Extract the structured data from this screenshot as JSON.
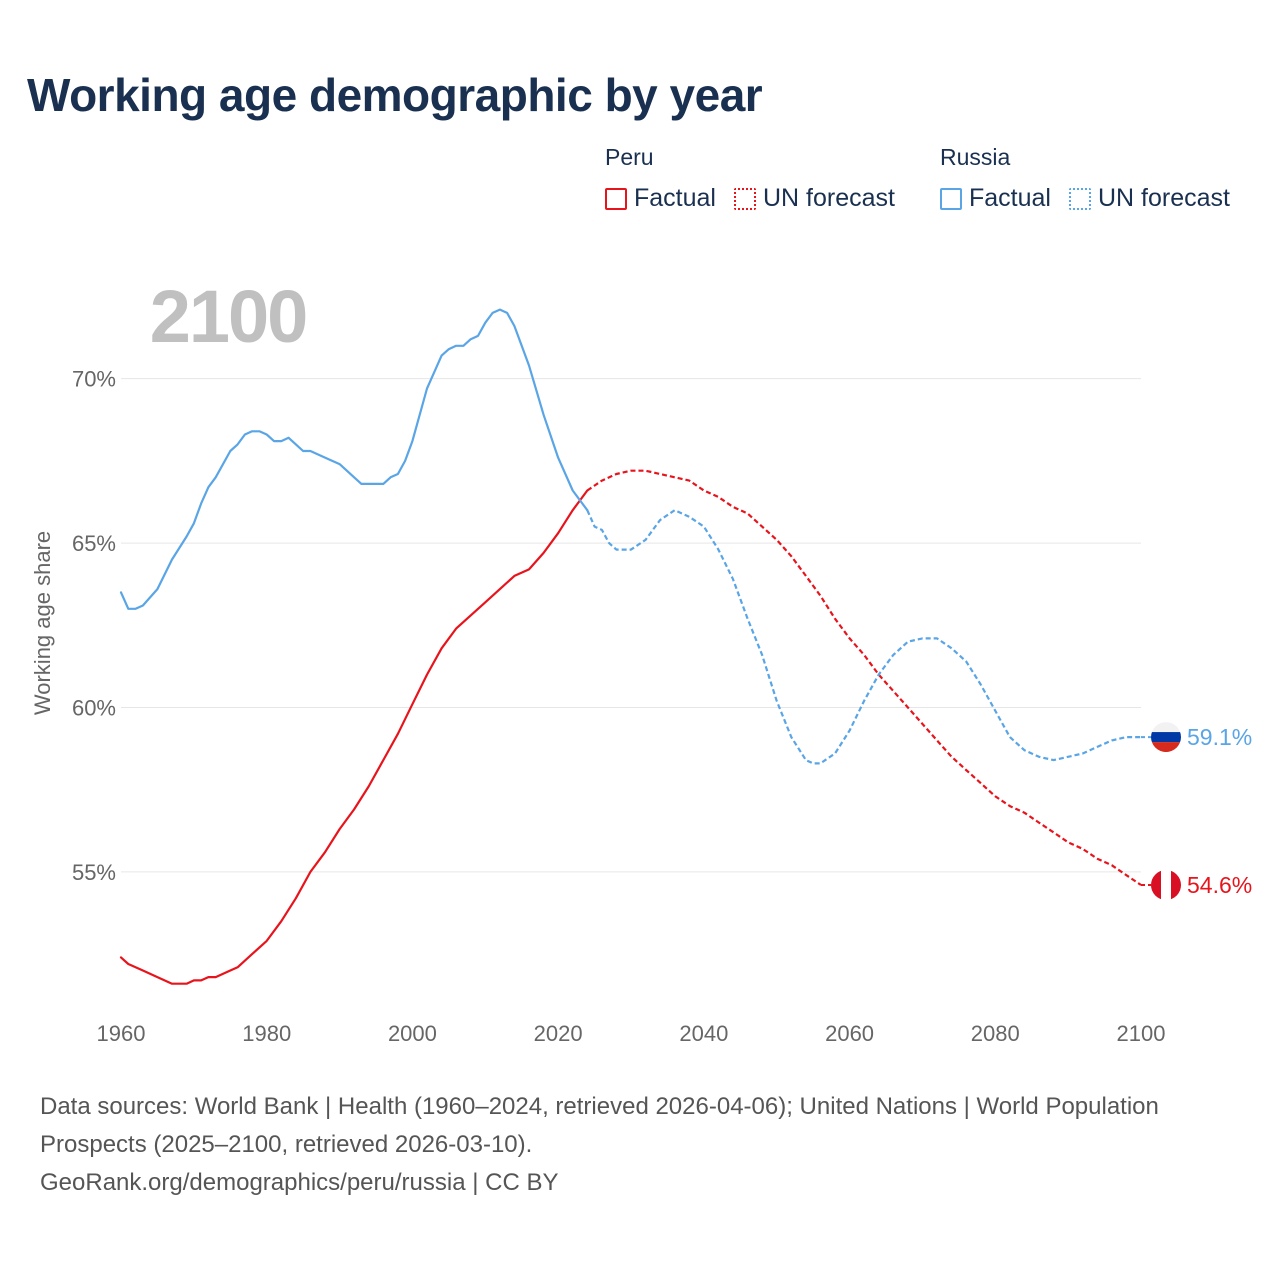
{
  "title": "Working age demographic by year",
  "legend": {
    "groups": [
      {
        "country": "Peru",
        "factual_label": "Factual",
        "forecast_label": "UN forecast",
        "color": "#e8141c"
      },
      {
        "country": "Russia",
        "factual_label": "Factual",
        "forecast_label": "UN forecast",
        "color": "#5aa5e6"
      }
    ]
  },
  "colors": {
    "title": "#1a3050",
    "axis_text": "#666666",
    "grid": "#e6e6e6",
    "year_watermark": "#c0c0c0",
    "peru_flag_red": "#d91023",
    "russia_flag_white": "#f2f2f2",
    "russia_flag_blue": "#0039a6",
    "russia_flag_red": "#d52b1e"
  },
  "chart_data": {
    "type": "line",
    "title": "Working age demographic by year",
    "year_watermark": "2100",
    "xlabel": "",
    "ylabel": "Working age share",
    "xlim": [
      1960,
      2100
    ],
    "ylim": [
      50.8,
      73
    ],
    "x_ticks": [
      1960,
      1980,
      2000,
      2020,
      2040,
      2060,
      2080,
      2100
    ],
    "x_tick_labels": [
      "1960",
      "1980",
      "2000",
      "2020",
      "2040",
      "2060",
      "2080",
      "2100"
    ],
    "y_ticks": [
      55,
      60,
      65,
      70
    ],
    "y_tick_labels": [
      "55%",
      "60%",
      "65%",
      "70%"
    ],
    "grid": true,
    "factual_end_year": 2024,
    "series": [
      {
        "name": "Peru",
        "end_label": "54.6%",
        "points": [
          [
            1960,
            52.4
          ],
          [
            1961,
            52.2
          ],
          [
            1963,
            52.0
          ],
          [
            1965,
            51.8
          ],
          [
            1967,
            51.6
          ],
          [
            1969,
            51.6
          ],
          [
            1970,
            51.7
          ],
          [
            1971,
            51.7
          ],
          [
            1972,
            51.8
          ],
          [
            1973,
            51.8
          ],
          [
            1975,
            52.0
          ],
          [
            1976,
            52.1
          ],
          [
            1978,
            52.5
          ],
          [
            1980,
            52.9
          ],
          [
            1982,
            53.5
          ],
          [
            1984,
            54.2
          ],
          [
            1986,
            55.0
          ],
          [
            1988,
            55.6
          ],
          [
            1990,
            56.3
          ],
          [
            1992,
            56.9
          ],
          [
            1994,
            57.6
          ],
          [
            1996,
            58.4
          ],
          [
            1998,
            59.2
          ],
          [
            2000,
            60.1
          ],
          [
            2002,
            61.0
          ],
          [
            2004,
            61.8
          ],
          [
            2006,
            62.4
          ],
          [
            2008,
            62.8
          ],
          [
            2010,
            63.2
          ],
          [
            2012,
            63.6
          ],
          [
            2014,
            64.0
          ],
          [
            2016,
            64.2
          ],
          [
            2018,
            64.7
          ],
          [
            2020,
            65.3
          ],
          [
            2022,
            66.0
          ],
          [
            2024,
            66.6
          ],
          [
            2026,
            66.9
          ],
          [
            2028,
            67.1
          ],
          [
            2030,
            67.2
          ],
          [
            2032,
            67.2
          ],
          [
            2034,
            67.1
          ],
          [
            2036,
            67.0
          ],
          [
            2038,
            66.9
          ],
          [
            2040,
            66.6
          ],
          [
            2042,
            66.4
          ],
          [
            2044,
            66.1
          ],
          [
            2046,
            65.9
          ],
          [
            2048,
            65.5
          ],
          [
            2050,
            65.1
          ],
          [
            2052,
            64.6
          ],
          [
            2054,
            64.0
          ],
          [
            2056,
            63.4
          ],
          [
            2058,
            62.7
          ],
          [
            2060,
            62.1
          ],
          [
            2062,
            61.6
          ],
          [
            2064,
            61.0
          ],
          [
            2066,
            60.5
          ],
          [
            2068,
            60.0
          ],
          [
            2070,
            59.5
          ],
          [
            2072,
            59.0
          ],
          [
            2074,
            58.5
          ],
          [
            2076,
            58.1
          ],
          [
            2078,
            57.7
          ],
          [
            2080,
            57.3
          ],
          [
            2082,
            57.0
          ],
          [
            2084,
            56.8
          ],
          [
            2086,
            56.5
          ],
          [
            2088,
            56.2
          ],
          [
            2090,
            55.9
          ],
          [
            2092,
            55.7
          ],
          [
            2094,
            55.4
          ],
          [
            2096,
            55.2
          ],
          [
            2098,
            54.9
          ],
          [
            2100,
            54.6
          ]
        ]
      },
      {
        "name": "Russia",
        "end_label": "59.1%",
        "points": [
          [
            1960,
            63.5
          ],
          [
            1961,
            63.0
          ],
          [
            1962,
            63.0
          ],
          [
            1963,
            63.1
          ],
          [
            1965,
            63.6
          ],
          [
            1967,
            64.5
          ],
          [
            1969,
            65.2
          ],
          [
            1970,
            65.6
          ],
          [
            1971,
            66.2
          ],
          [
            1972,
            66.7
          ],
          [
            1973,
            67.0
          ],
          [
            1975,
            67.8
          ],
          [
            1976,
            68.0
          ],
          [
            1977,
            68.3
          ],
          [
            1978,
            68.4
          ],
          [
            1979,
            68.4
          ],
          [
            1980,
            68.3
          ],
          [
            1981,
            68.1
          ],
          [
            1982,
            68.1
          ],
          [
            1983,
            68.2
          ],
          [
            1984,
            68.0
          ],
          [
            1985,
            67.8
          ],
          [
            1986,
            67.8
          ],
          [
            1988,
            67.6
          ],
          [
            1990,
            67.4
          ],
          [
            1992,
            67.0
          ],
          [
            1993,
            66.8
          ],
          [
            1994,
            66.8
          ],
          [
            1996,
            66.8
          ],
          [
            1997,
            67.0
          ],
          [
            1998,
            67.1
          ],
          [
            1999,
            67.5
          ],
          [
            2000,
            68.1
          ],
          [
            2002,
            69.7
          ],
          [
            2004,
            70.7
          ],
          [
            2005,
            70.9
          ],
          [
            2006,
            71.0
          ],
          [
            2007,
            71.0
          ],
          [
            2008,
            71.2
          ],
          [
            2009,
            71.3
          ],
          [
            2010,
            71.7
          ],
          [
            2011,
            72.0
          ],
          [
            2012,
            72.1
          ],
          [
            2013,
            72.0
          ],
          [
            2014,
            71.6
          ],
          [
            2016,
            70.4
          ],
          [
            2018,
            68.9
          ],
          [
            2020,
            67.6
          ],
          [
            2022,
            66.6
          ],
          [
            2024,
            66.0
          ],
          [
            2025,
            65.5
          ],
          [
            2026,
            65.4
          ],
          [
            2027,
            65.0
          ],
          [
            2028,
            64.8
          ],
          [
            2030,
            64.8
          ],
          [
            2032,
            65.1
          ],
          [
            2034,
            65.7
          ],
          [
            2036,
            66.0
          ],
          [
            2038,
            65.8
          ],
          [
            2040,
            65.5
          ],
          [
            2042,
            64.8
          ],
          [
            2044,
            63.9
          ],
          [
            2046,
            62.7
          ],
          [
            2048,
            61.6
          ],
          [
            2050,
            60.2
          ],
          [
            2052,
            59.1
          ],
          [
            2054,
            58.4
          ],
          [
            2055,
            58.3
          ],
          [
            2056,
            58.3
          ],
          [
            2058,
            58.6
          ],
          [
            2060,
            59.3
          ],
          [
            2062,
            60.2
          ],
          [
            2064,
            61.0
          ],
          [
            2066,
            61.6
          ],
          [
            2068,
            62.0
          ],
          [
            2070,
            62.1
          ],
          [
            2072,
            62.1
          ],
          [
            2074,
            61.8
          ],
          [
            2076,
            61.4
          ],
          [
            2078,
            60.7
          ],
          [
            2080,
            59.9
          ],
          [
            2082,
            59.1
          ],
          [
            2084,
            58.7
          ],
          [
            2086,
            58.5
          ],
          [
            2088,
            58.4
          ],
          [
            2090,
            58.5
          ],
          [
            2092,
            58.6
          ],
          [
            2094,
            58.8
          ],
          [
            2096,
            59.0
          ],
          [
            2098,
            59.1
          ],
          [
            2100,
            59.1
          ]
        ]
      }
    ]
  },
  "footer": {
    "line1": "Data sources: World Bank | Health (1960–2024, retrieved 2026-04-06); United Nations | World Population Prospects (2025–2100, retrieved 2026-03-10).",
    "line2": "GeoRank.org/demographics/peru/russia | CC BY"
  }
}
